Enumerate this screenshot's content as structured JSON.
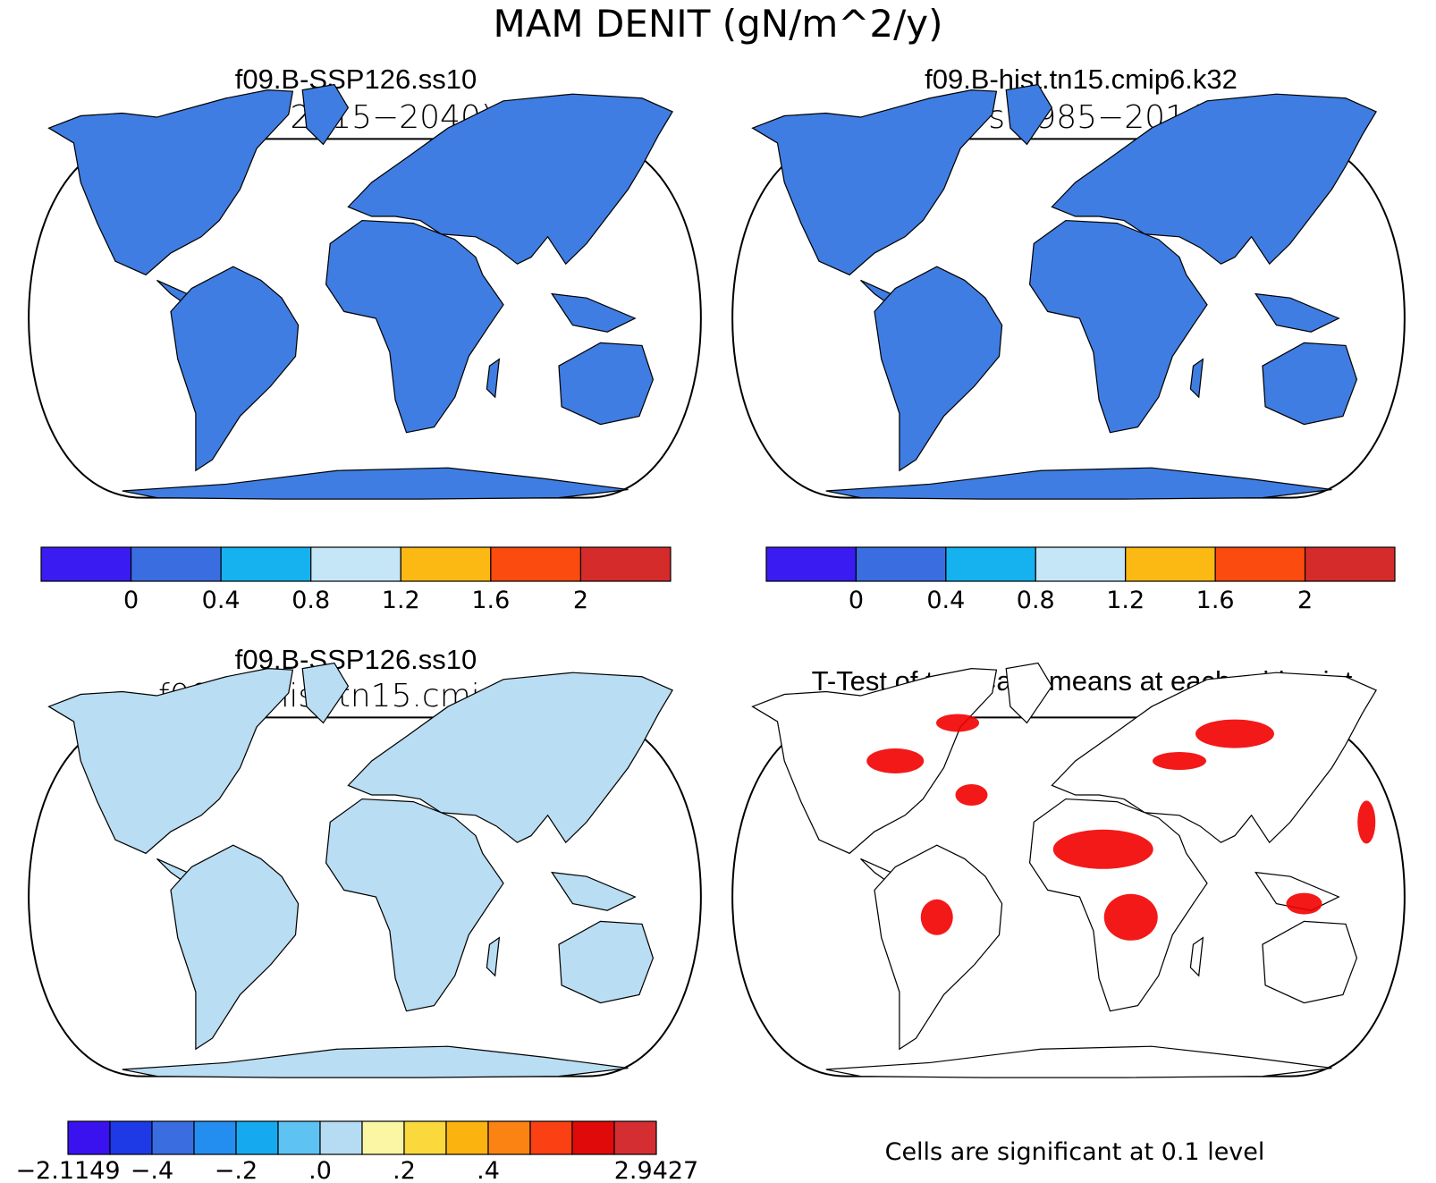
{
  "title": "MAM DENIT (gN/m^2/y)",
  "panels": {
    "top_left": {
      "case": "f09.B-SSP126.ss10",
      "years": "(yrs 2015−2040)"
    },
    "top_right": {
      "case": "f09.B-hist.tn15.cmip6.k32",
      "years": "(yrs 1985−2014)"
    },
    "bottom_left": {
      "case": "f09.B-SSP126.ss10",
      "subtitle": "− f09.B−hist.tn15.cmip6.k32"
    },
    "bottom_right": {
      "title": "T-Test of two Case means at each grid point",
      "note": "Cells are significant at 0.1 level"
    }
  },
  "colorbar_main": {
    "colors": [
      "#3a1cf2",
      "#3a6ee0",
      "#15b2ef",
      "#c4e6f6",
      "#fcb914",
      "#fb4b0e",
      "#d62b2b"
    ],
    "labels": [
      "0",
      "0.4",
      "0.8",
      "1.2",
      "1.6",
      "2"
    ]
  },
  "colorbar_diff": {
    "colors": [
      "#3a12f0",
      "#1d3ae6",
      "#3a6ee0",
      "#238ef0",
      "#15aaf0",
      "#5ec3f2",
      "#b5dcf2",
      "#fbf6a4",
      "#fbd83c",
      "#fbb310",
      "#fb8313",
      "#fb4014",
      "#e00a0a",
      "#d42e33"
    ],
    "labels": [
      "−2.1149",
      "−.4",
      "−.2",
      ".0",
      ".2",
      ".4",
      "2.9427"
    ]
  },
  "significance_color": "#f20000"
}
